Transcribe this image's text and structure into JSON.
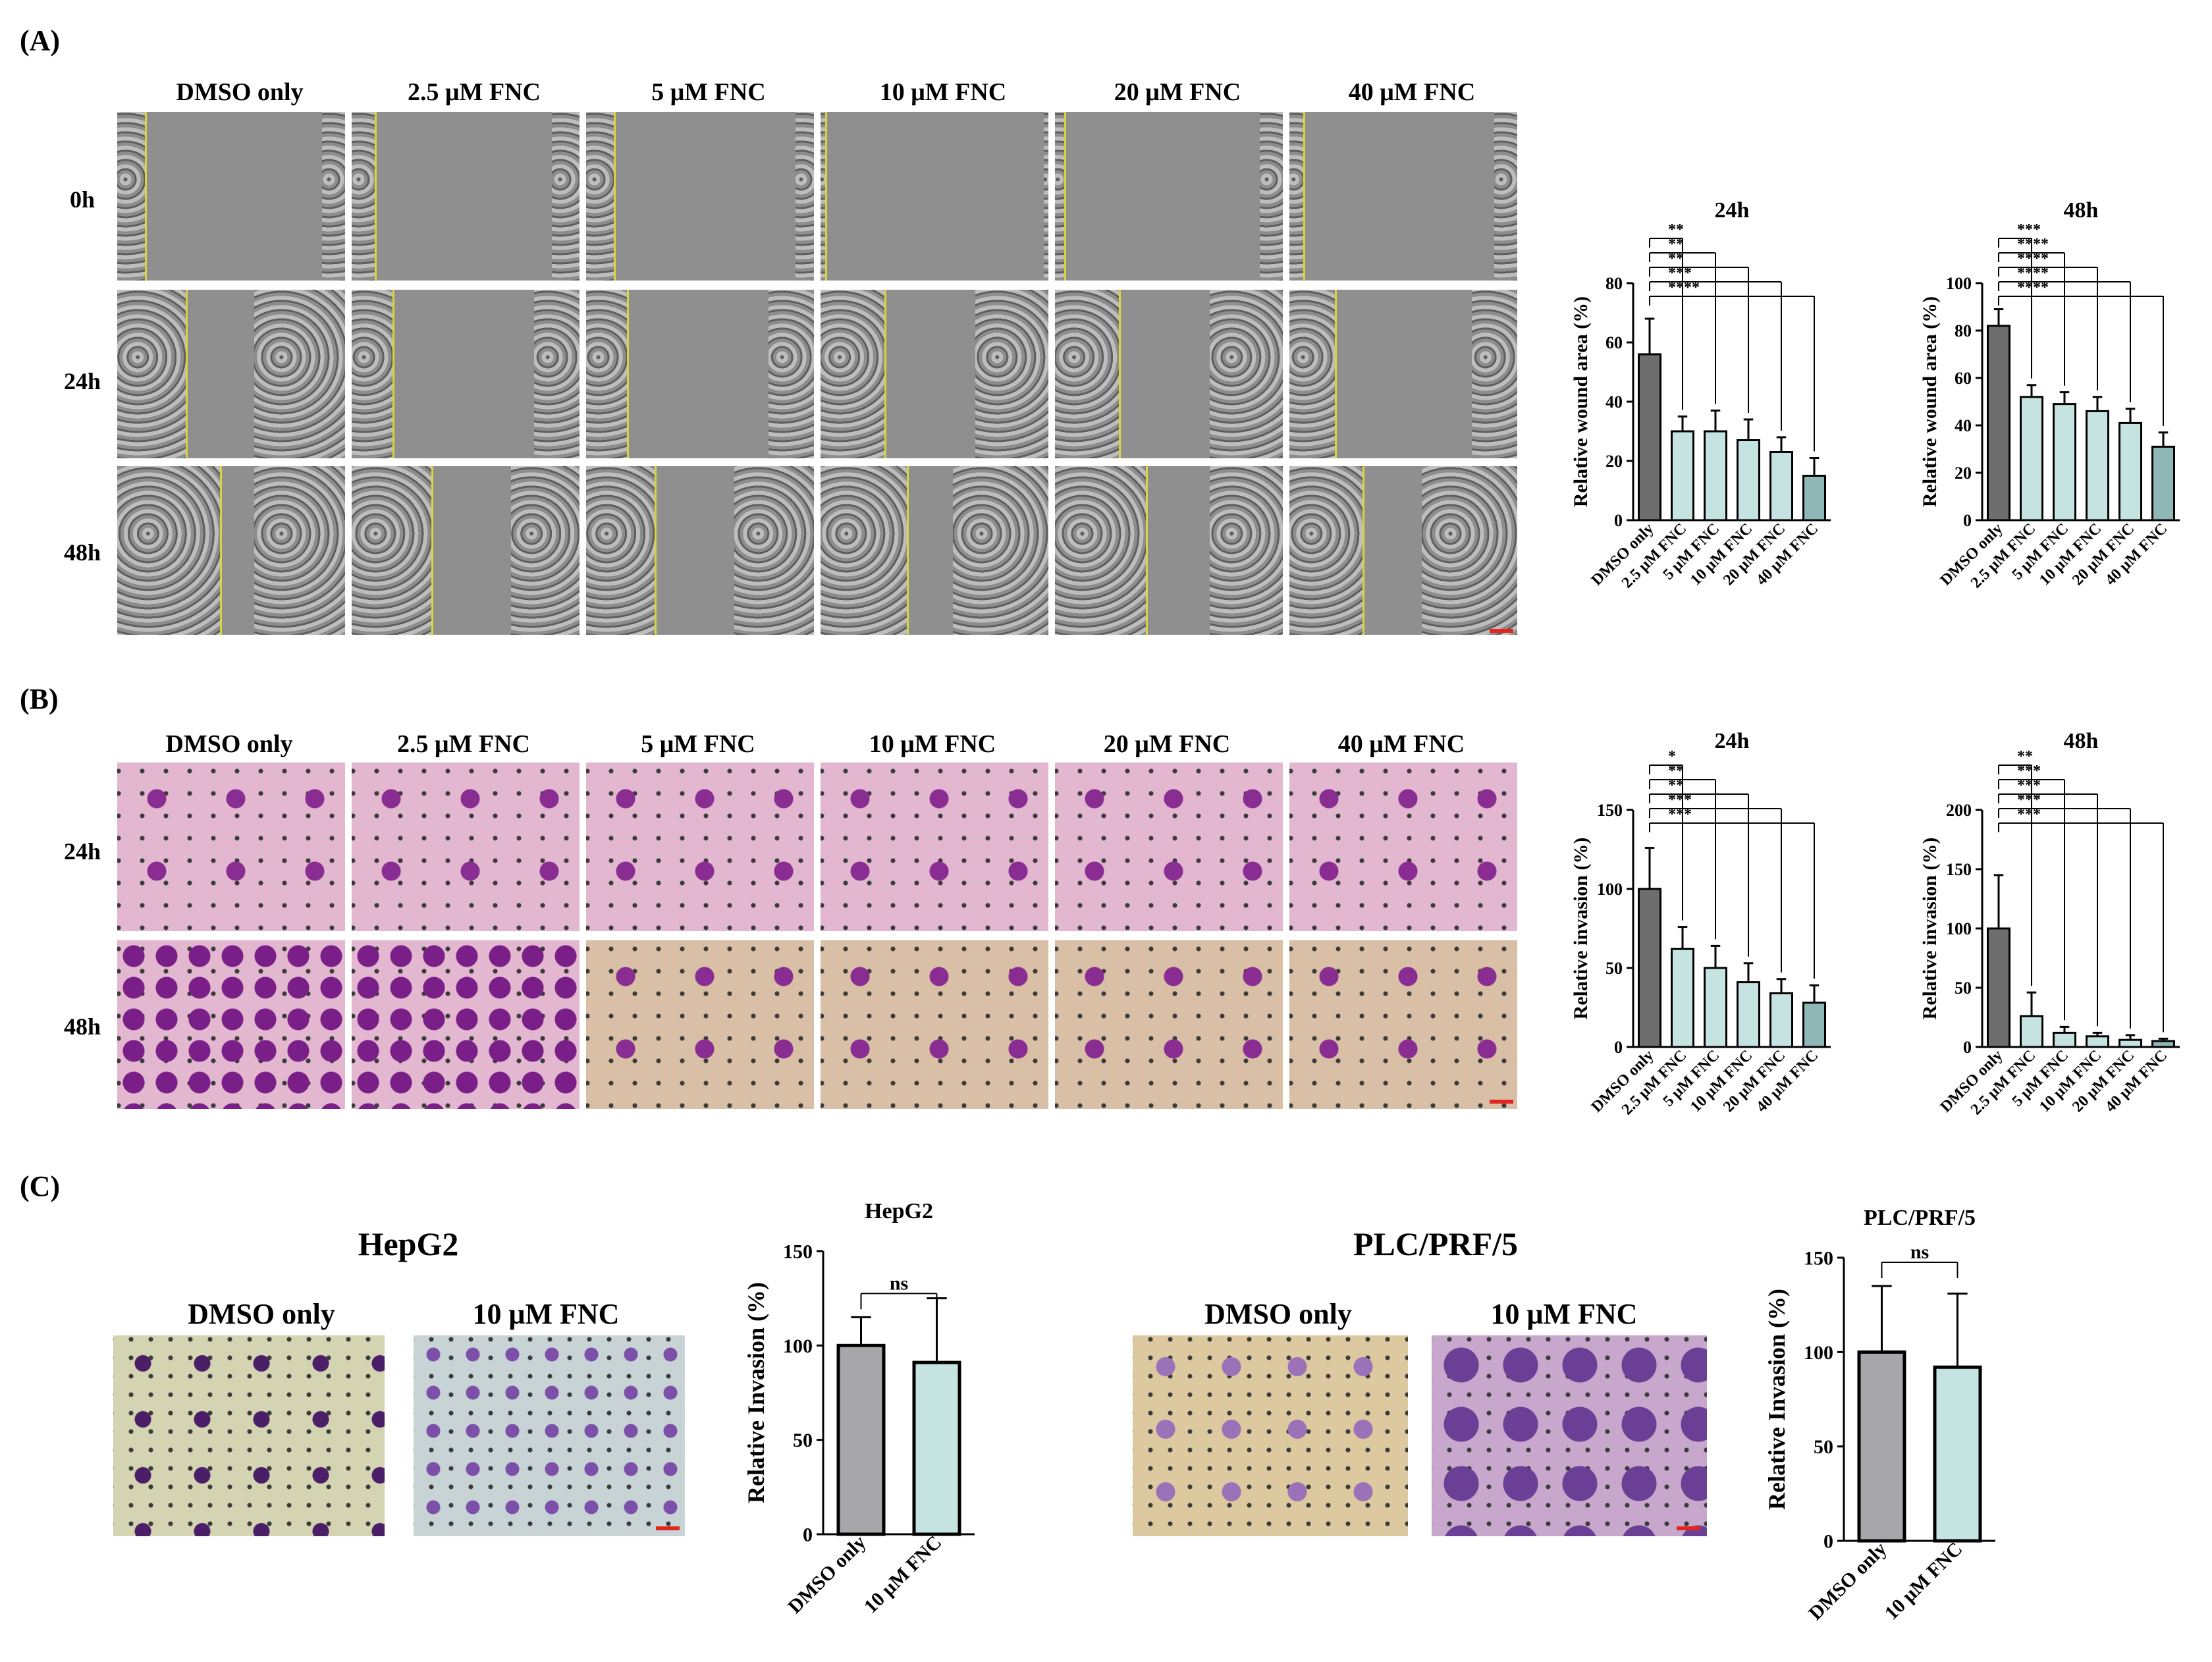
{
  "panels": {
    "a": {
      "label": "(A)",
      "columns": [
        "DMSO only",
        "2.5 μM FNC",
        "5 μM FNC",
        "10 μM FNC",
        "20 μM FNC",
        "40 μM FNC"
      ],
      "rows": [
        "0h",
        "24h",
        "48h"
      ]
    },
    "b": {
      "label": "(B)",
      "columns": [
        "DMSO only",
        "2.5 μM FNC",
        "5 μM FNC",
        "10 μM FNC",
        "20 μM FNC",
        "40 μM FNC"
      ],
      "rows": [
        "24h",
        "48h"
      ]
    },
    "c": {
      "label": "(C)",
      "hepg2": {
        "title": "HepG2",
        "columns": [
          "DMSO only",
          "10 μM FNC"
        ]
      },
      "plc": {
        "title": "PLC/PRF/5",
        "columns": [
          "DMSO only",
          "10 μM FNC"
        ]
      }
    }
  },
  "colors": {
    "dmso_bar": "#6e6e6e",
    "fnc_bar": "#c5e3e1",
    "fnc_bar_dark": "#8fb7b5",
    "control_bar_c": "#a6a6ab",
    "scalebar": "#e1261c"
  },
  "chart_data": [
    {
      "id": "wound24",
      "type": "bar",
      "title": "24h",
      "ylabel": "Relative wound area (%)",
      "categories": [
        "DMSO only",
        "2.5 μM FNC",
        "5 μM FNC",
        "10 μM FNC",
        "20 μM FNC",
        "40 μM FNC"
      ],
      "values": [
        56,
        30,
        30,
        27,
        23,
        15
      ],
      "errors": [
        12,
        5,
        7,
        7,
        5,
        6
      ],
      "ylim": [
        0,
        80
      ],
      "yticks": [
        0,
        20,
        40,
        60,
        80
      ],
      "significance": [
        "**",
        "**",
        "**",
        "***",
        "****"
      ]
    },
    {
      "id": "wound48",
      "type": "bar",
      "title": "48h",
      "ylabel": "Relative wound area (%)",
      "categories": [
        "DMSO only",
        "2.5 μM FNC",
        "5 μM FNC",
        "10 μM FNC",
        "20 μM FNC",
        "40 μM FNC"
      ],
      "values": [
        82,
        52,
        49,
        46,
        41,
        31
      ],
      "errors": [
        7,
        5,
        5,
        6,
        6,
        6
      ],
      "ylim": [
        0,
        100
      ],
      "yticks": [
        0,
        20,
        40,
        60,
        80,
        100
      ],
      "significance": [
        "***",
        "****",
        "****",
        "****",
        "****"
      ]
    },
    {
      "id": "inv24",
      "type": "bar",
      "title": "24h",
      "ylabel": "Relative invasion (%)",
      "categories": [
        "DMSO only",
        "2.5 μM FNC",
        "5 μM FNC",
        "10 μM FNC",
        "20 μM FNC",
        "40 μM FNC"
      ],
      "values": [
        100,
        62,
        50,
        41,
        34,
        28
      ],
      "errors": [
        26,
        14,
        14,
        12,
        9,
        11
      ],
      "ylim": [
        0,
        150
      ],
      "yticks": [
        0,
        50,
        100,
        150
      ],
      "significance": [
        "*",
        "**",
        "**",
        "***",
        "***"
      ]
    },
    {
      "id": "inv48",
      "type": "bar",
      "title": "48h",
      "ylabel": "Relative invasion (%)",
      "categories": [
        "DMSO only",
        "2.5 μM FNC",
        "5 μM FNC",
        "10 μM FNC",
        "20 μM FNC",
        "40 μM FNC"
      ],
      "values": [
        100,
        26,
        12,
        9,
        6,
        5
      ],
      "errors": [
        45,
        20,
        5,
        3,
        4,
        2
      ],
      "ylim": [
        0,
        200
      ],
      "yticks": [
        0,
        50,
        100,
        150,
        200
      ],
      "significance": [
        "**",
        "***",
        "***",
        "***",
        "***"
      ]
    },
    {
      "id": "hepg2",
      "type": "bar",
      "title": "HepG2",
      "ylabel": "Relative Invasion (%)",
      "categories": [
        "DMSO only",
        "10 μM FNC"
      ],
      "values": [
        100,
        91
      ],
      "errors": [
        15,
        34
      ],
      "ylim": [
        0,
        150
      ],
      "yticks": [
        0,
        50,
        100,
        150
      ],
      "significance": [
        "ns"
      ]
    },
    {
      "id": "plc",
      "type": "bar",
      "title": "PLC/PRF/5",
      "ylabel": "Relative Invasion (%)",
      "categories": [
        "DMSO only",
        "10 μM FNC"
      ],
      "values": [
        100,
        92
      ],
      "errors": [
        35,
        39
      ],
      "ylim": [
        0,
        150
      ],
      "yticks": [
        0,
        50,
        100,
        150
      ],
      "significance": [
        "ns"
      ]
    }
  ]
}
